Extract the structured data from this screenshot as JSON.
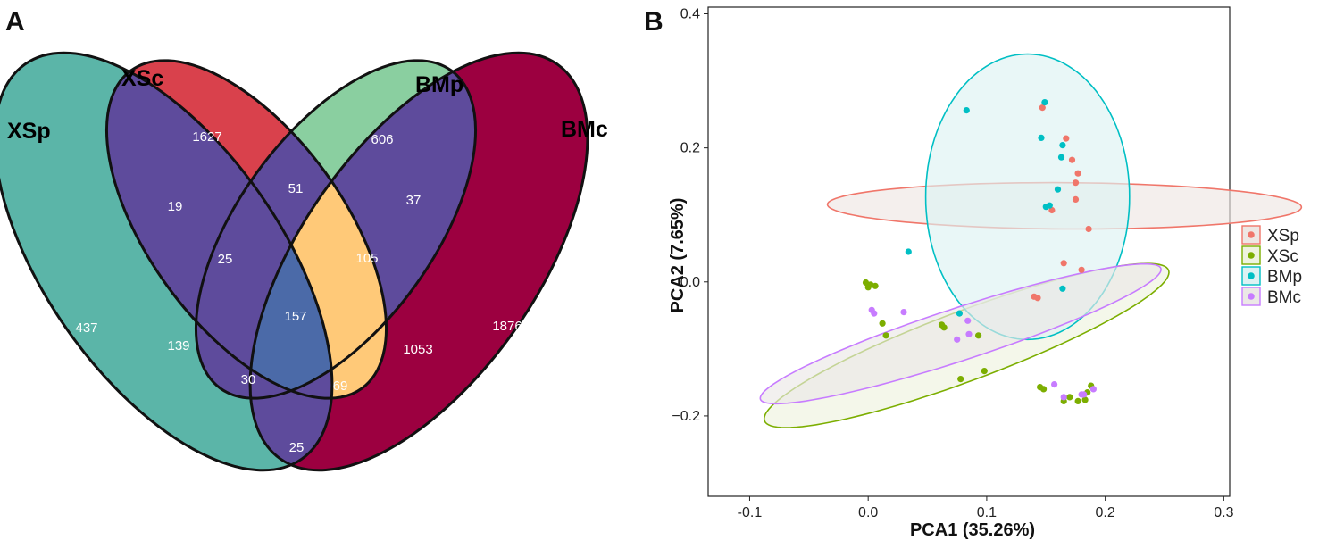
{
  "panels": {
    "a_letter": "A",
    "b_letter": "B"
  },
  "chart_data": [
    {
      "type": "venn",
      "sets": [
        {
          "key": "XSp",
          "name": "XSp",
          "color": "#5BB5A8"
        },
        {
          "key": "XSc",
          "name": "XSc",
          "color": "#D9414C"
        },
        {
          "key": "BMp",
          "name": "BMp",
          "color": "#8ACFA0"
        },
        {
          "key": "BMc",
          "name": "BMc",
          "color": "#9C0040"
        }
      ],
      "overlap_colors": {
        "double_plus": "#5E4B9C",
        "core": "#4B6AA8",
        "xsc_bmc": "#FFC978"
      },
      "regions": [
        {
          "sets": [
            "XSc"
          ],
          "value": 1627
        },
        {
          "sets": [
            "BMp"
          ],
          "value": 606
        },
        {
          "sets": [
            "XSp"
          ],
          "value": 437
        },
        {
          "sets": [
            "BMc"
          ],
          "value": 1876
        },
        {
          "sets": [
            "XSp",
            "XSc"
          ],
          "value": 19
        },
        {
          "sets": [
            "XSc",
            "BMp"
          ],
          "value": 51
        },
        {
          "sets": [
            "BMp",
            "BMc"
          ],
          "value": 37
        },
        {
          "sets": [
            "XSp",
            "XSc",
            "BMp"
          ],
          "value": 25
        },
        {
          "sets": [
            "XSc",
            "BMp",
            "BMc"
          ],
          "value": 105
        },
        {
          "sets": [
            "XSp",
            "XSc",
            "BMp",
            "BMc"
          ],
          "value": 157
        },
        {
          "sets": [
            "XSp",
            "BMp"
          ],
          "value": 139
        },
        {
          "sets": [
            "XSc",
            "BMc"
          ],
          "value": 1053
        },
        {
          "sets": [
            "XSp",
            "BMp",
            "BMc"
          ],
          "value": 30
        },
        {
          "sets": [
            "XSp",
            "XSc",
            "BMc"
          ],
          "value": 69
        },
        {
          "sets": [
            "XSp",
            "BMc"
          ],
          "value": 25
        }
      ]
    },
    {
      "type": "scatter",
      "xlabel": "PCA1 (35.26%)",
      "ylabel": "PCA2 (7.65%)",
      "xlim": [
        -0.135,
        0.305
      ],
      "ylim": [
        -0.32,
        0.41
      ],
      "xticks": [
        -0.1,
        0.0,
        0.1,
        0.2,
        0.3
      ],
      "xtick_labels": [
        "-0.1",
        "0.0",
        "0.1",
        "0.2",
        "0.3"
      ],
      "yticks": [
        -0.2,
        0.0,
        0.2,
        0.4
      ],
      "ytick_labels": [
        "−0.2",
        "0.0",
        "0.2",
        "0.4"
      ],
      "legend_position": "right",
      "series": [
        {
          "name": "XSp",
          "color": "#F0766A",
          "fill": "#EEE7E3",
          "ellipse": {
            "cx": 0.1656,
            "cy": 0.1135,
            "rx": 0.0345,
            "ry": 0.2,
            "angle_deg": -90.6
          },
          "points": [
            {
              "x": 0.147,
              "y": 0.26
            },
            {
              "x": 0.167,
              "y": 0.214
            },
            {
              "x": 0.172,
              "y": 0.182
            },
            {
              "x": 0.177,
              "y": 0.162
            },
            {
              "x": 0.175,
              "y": 0.148
            },
            {
              "x": 0.175,
              "y": 0.123
            },
            {
              "x": 0.155,
              "y": 0.107
            },
            {
              "x": 0.186,
              "y": 0.079
            },
            {
              "x": 0.165,
              "y": 0.028
            },
            {
              "x": 0.18,
              "y": 0.018
            },
            {
              "x": 0.14,
              "y": -0.022
            },
            {
              "x": 0.143,
              "y": -0.024
            }
          ]
        },
        {
          "name": "XSc",
          "color": "#7CAE00",
          "fill": "#EEF3DF",
          "ellipse": {
            "cx": 0.083,
            "cy": -0.095,
            "rx": 0.205,
            "ry": 0.046,
            "angle_deg": 34.6
          },
          "points": [
            {
              "x": -0.002,
              "y": -0.001
            },
            {
              "x": 0.002,
              "y": -0.004
            },
            {
              "x": 0.006,
              "y": -0.006
            },
            {
              "x": 0.0,
              "y": -0.008
            },
            {
              "x": 0.012,
              "y": -0.062
            },
            {
              "x": 0.015,
              "y": -0.08
            },
            {
              "x": 0.062,
              "y": -0.064
            },
            {
              "x": 0.064,
              "y": -0.068
            },
            {
              "x": 0.093,
              "y": -0.08
            },
            {
              "x": 0.098,
              "y": -0.133
            },
            {
              "x": 0.078,
              "y": -0.145
            },
            {
              "x": 0.145,
              "y": -0.157
            },
            {
              "x": 0.148,
              "y": -0.16
            },
            {
              "x": 0.165,
              "y": -0.178
            },
            {
              "x": 0.17,
              "y": -0.172
            },
            {
              "x": 0.177,
              "y": -0.178
            },
            {
              "x": 0.183,
              "y": -0.176
            },
            {
              "x": 0.185,
              "y": -0.165
            },
            {
              "x": 0.188,
              "y": -0.155
            }
          ]
        },
        {
          "name": "BMp",
          "color": "#00BFC4",
          "fill": "#DDF2F3",
          "ellipse": {
            "cx": 0.1345,
            "cy": 0.127,
            "rx": 0.086,
            "ry": 0.213,
            "angle_deg": 0
          },
          "points": [
            {
              "x": 0.083,
              "y": 0.256
            },
            {
              "x": 0.149,
              "y": 0.268
            },
            {
              "x": 0.146,
              "y": 0.215
            },
            {
              "x": 0.164,
              "y": 0.204
            },
            {
              "x": 0.163,
              "y": 0.186
            },
            {
              "x": 0.16,
              "y": 0.138
            },
            {
              "x": 0.15,
              "y": 0.112
            },
            {
              "x": 0.153,
              "y": 0.114
            },
            {
              "x": 0.034,
              "y": 0.045
            },
            {
              "x": 0.164,
              "y": -0.01
            },
            {
              "x": 0.077,
              "y": -0.047
            }
          ]
        },
        {
          "name": "BMc",
          "color": "#C77CFF",
          "fill": "#EBE8E6",
          "ellipse": {
            "cx": 0.078,
            "cy": -0.0775,
            "rx": 0.1955,
            "ry": 0.0355,
            "angle_deg": 30.7
          },
          "points": [
            {
              "x": 0.003,
              "y": -0.042
            },
            {
              "x": 0.005,
              "y": -0.047
            },
            {
              "x": 0.03,
              "y": -0.045
            },
            {
              "x": 0.084,
              "y": -0.058
            },
            {
              "x": 0.085,
              "y": -0.078
            },
            {
              "x": 0.075,
              "y": -0.086
            },
            {
              "x": 0.157,
              "y": -0.153
            },
            {
              "x": 0.165,
              "y": -0.172
            },
            {
              "x": 0.18,
              "y": -0.168
            },
            {
              "x": 0.19,
              "y": -0.16
            },
            {
              "x": 0.182,
              "y": -0.168
            }
          ]
        }
      ]
    }
  ]
}
